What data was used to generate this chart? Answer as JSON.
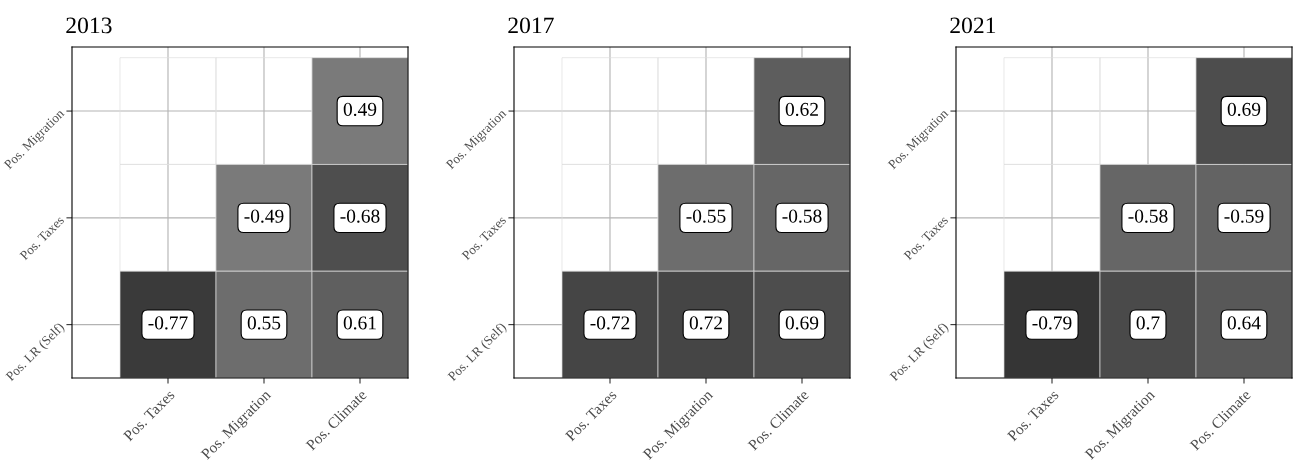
{
  "chart_data": [
    {
      "type": "heatmap",
      "title": "2013",
      "categories": [
        "Pos. Taxes",
        "Pos. Migration",
        "Pos. Climate"
      ],
      "y_categories": [
        "Pos. Migration",
        "Pos. Taxes",
        "Pos. LR (Self)"
      ],
      "cells": [
        [
          null,
          null,
          0.49
        ],
        [
          null,
          -0.49,
          -0.68
        ],
        [
          -0.77,
          0.55,
          0.61
        ]
      ],
      "data_labels": true,
      "grid": true
    },
    {
      "type": "heatmap",
      "title": "2017",
      "categories": [
        "Pos. Taxes",
        "Pos. Migration",
        "Pos. Climate"
      ],
      "y_categories": [
        "Pos. Migration",
        "Pos. Taxes",
        "Pos. LR (Self)"
      ],
      "cells": [
        [
          null,
          null,
          0.62
        ],
        [
          null,
          -0.55,
          -0.58
        ],
        [
          -0.72,
          0.72,
          0.69
        ]
      ],
      "data_labels": true,
      "grid": true
    },
    {
      "type": "heatmap",
      "title": "2021",
      "categories": [
        "Pos. Taxes",
        "Pos. Migration",
        "Pos. Climate"
      ],
      "y_categories": [
        "Pos. Migration",
        "Pos. Taxes",
        "Pos. LR (Self)"
      ],
      "cells": [
        [
          null,
          null,
          0.69
        ],
        [
          null,
          -0.58,
          -0.59
        ],
        [
          -0.79,
          0.7,
          0.64
        ]
      ],
      "data_labels": true,
      "grid": true
    }
  ]
}
